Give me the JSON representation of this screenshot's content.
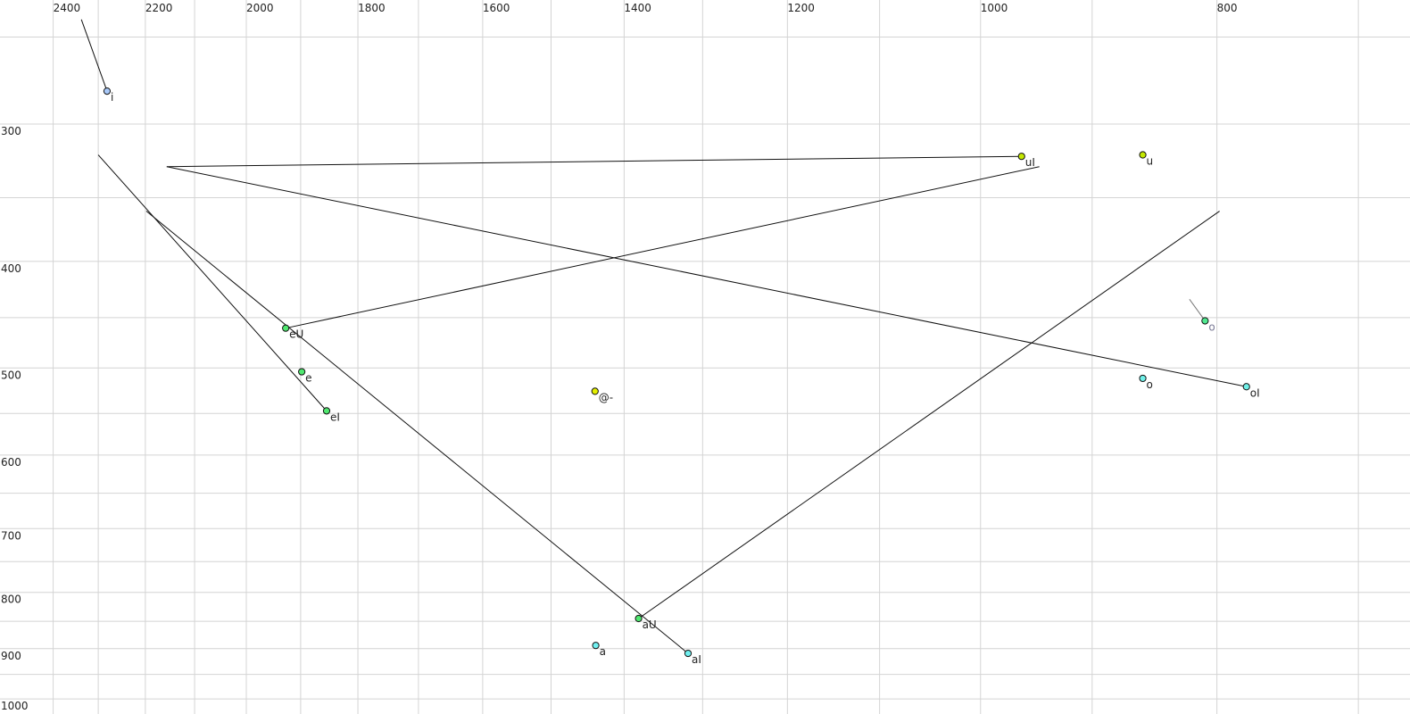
{
  "chart_data": {
    "type": "scatter",
    "title": "",
    "xlabel": "",
    "ylabel": "",
    "x_quantity": "F2",
    "y_quantity": "F1",
    "x_scale": "log",
    "y_scale": "log",
    "x_reversed": true,
    "y_reversed": false,
    "xlim": [
      2500,
      690
    ],
    "ylim": [
      235,
      1030
    ],
    "x_ticks": [
      2400,
      2200,
      2000,
      1800,
      1600,
      1400,
      1200,
      1000,
      800
    ],
    "y_ticks": [
      300,
      400,
      500,
      600,
      700,
      800,
      900,
      1000
    ],
    "x_grid_step": 100,
    "y_grid_step": 50,
    "grid": true,
    "points": [
      {
        "label": "i",
        "F2": 2281,
        "F1": 280,
        "color": "#a8c8f8",
        "end": {
          "F2": 2337,
          "F1": 241
        }
      },
      {
        "label": "uI",
        "F2": 962,
        "F1": 321,
        "color": "#c4e800",
        "end": {
          "F2": 2156,
          "F1": 328
        }
      },
      {
        "label": "u",
        "F2": 858,
        "F1": 320,
        "color": "#c4e800"
      },
      {
        "label": "o",
        "F2": 809,
        "F1": 453,
        "color": "#50e890",
        "label_color": "#7a7a96",
        "line_color": "#777777",
        "end": {
          "F2": 821,
          "F1": 433
        }
      },
      {
        "label": "eU",
        "F2": 1927,
        "F1": 460,
        "color": "#50e870",
        "end": {
          "F2": 946,
          "F1": 328
        }
      },
      {
        "label": "e",
        "F2": 1898,
        "F1": 504,
        "color": "#50e870"
      },
      {
        "label": "@-",
        "F2": 1439,
        "F1": 525,
        "color": "#e4f000"
      },
      {
        "label": "o",
        "F2": 858,
        "F1": 511,
        "color": "#70f0e8"
      },
      {
        "label": "oI",
        "F2": 778,
        "F1": 520,
        "color": "#70f0e8",
        "end": {
          "F2": 2156,
          "F1": 328
        }
      },
      {
        "label": "eI",
        "F2": 1854,
        "F1": 547,
        "color": "#50e870",
        "end": {
          "F2": 2300,
          "F1": 320
        }
      },
      {
        "label": "aU",
        "F2": 1381,
        "F1": 845,
        "color": "#50e870",
        "end": {
          "F2": 798,
          "F1": 360
        }
      },
      {
        "label": "a",
        "F2": 1438,
        "F1": 894,
        "color": "#70f0f0"
      },
      {
        "label": "aI",
        "F2": 1318,
        "F1": 909,
        "color": "#70f0f0",
        "end": {
          "F2": 2198,
          "F1": 360
        }
      }
    ]
  }
}
